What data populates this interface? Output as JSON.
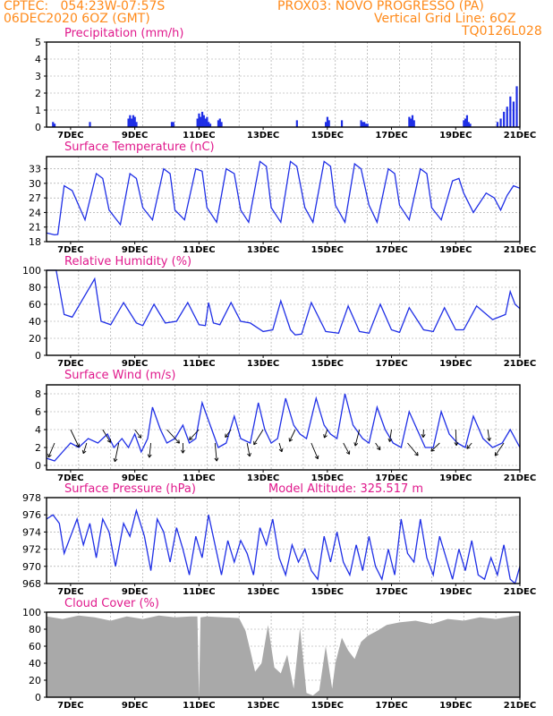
{
  "header": {
    "line1_left": "CPTEC:   054:23W-07:57S",
    "line1_right": "PROX03: NOVO PROGRESSO (PA)",
    "line2_left": "06DEC2020 6OZ (GMT)",
    "line2_right": "Vertical Grid Line: 6OZ",
    "line3_right": "TQ0126L028"
  },
  "colors": {
    "header": "#ff8a1a",
    "panel_title": "#e0198c",
    "series": "#1f2fe6",
    "cloud": "#a9a9a9",
    "grid": "#9a9a9a"
  },
  "x_axis": {
    "start": "06DEC2020 06Z",
    "end": "21DEC2020",
    "days_span": 14.75,
    "tick_labels": [
      "7DEC",
      "9DEC",
      "11DEC",
      "13DEC",
      "15DEC",
      "17DEC",
      "19DEC",
      "21DEC"
    ],
    "tick_days": [
      0.75,
      2.75,
      4.75,
      6.75,
      8.75,
      10.75,
      12.75,
      14.75
    ]
  },
  "chart_data": [
    {
      "type": "bar",
      "id": "precip",
      "title": "Precipitation (mm/h)",
      "ylim": [
        0,
        5
      ],
      "yticks": [
        "0",
        "1",
        "2",
        "3",
        "4",
        "5"
      ],
      "series": [
        {
          "name": "Precipitation",
          "x": [
            0.2,
            0.25,
            1.35,
            2.55,
            2.6,
            2.65,
            2.7,
            2.75,
            2.8,
            3.9,
            3.95,
            4.7,
            4.75,
            4.8,
            4.85,
            4.9,
            4.95,
            5.0,
            5.05,
            5.1,
            5.35,
            5.4,
            5.45,
            7.8,
            8.7,
            8.75,
            8.8,
            9.2,
            9.8,
            9.85,
            9.9,
            9.95,
            10.0,
            11.3,
            11.35,
            11.4,
            11.45,
            13.0,
            13.05,
            13.1,
            13.15,
            13.2,
            14.05,
            14.15,
            14.25,
            14.35,
            14.45,
            14.55,
            14.65
          ],
          "values": [
            0.3,
            0.2,
            0.3,
            0.5,
            0.7,
            0.5,
            0.7,
            0.6,
            0.3,
            0.3,
            0.3,
            0.5,
            0.8,
            0.6,
            0.9,
            0.7,
            0.5,
            0.6,
            0.3,
            0.2,
            0.4,
            0.5,
            0.3,
            0.4,
            0.3,
            0.6,
            0.4,
            0.4,
            0.4,
            0.3,
            0.3,
            0.2,
            0.2,
            0.6,
            0.5,
            0.7,
            0.4,
            0.4,
            0.5,
            0.7,
            0.3,
            0.2,
            0.3,
            0.5,
            0.9,
            1.2,
            1.8,
            1.5,
            2.4
          ]
        }
      ]
    },
    {
      "type": "line",
      "id": "temp",
      "title": "Surface Temperature (nC)",
      "ylim": [
        18,
        35.5
      ],
      "yticks": [
        "18",
        "21",
        "24",
        "27",
        "30",
        "33"
      ],
      "series": [
        {
          "name": "Temperature",
          "x": [
            0,
            0.25,
            0.35,
            0.55,
            0.8,
            1.2,
            1.55,
            1.75,
            1.95,
            2.3,
            2.6,
            2.8,
            3.0,
            3.3,
            3.65,
            3.85,
            4.0,
            4.3,
            4.65,
            4.85,
            5.0,
            5.3,
            5.6,
            5.85,
            6.05,
            6.3,
            6.65,
            6.85,
            7.0,
            7.3,
            7.6,
            7.8,
            8.05,
            8.3,
            8.65,
            8.85,
            9.0,
            9.3,
            9.6,
            9.8,
            10.05,
            10.3,
            10.65,
            10.85,
            11.0,
            11.3,
            11.65,
            11.85,
            12.0,
            12.3,
            12.65,
            12.85,
            13.0,
            13.3,
            13.7,
            13.95,
            14.15,
            14.35,
            14.55,
            14.75
          ],
          "values": [
            19.8,
            19.4,
            19.5,
            29.5,
            28.5,
            22.5,
            32.0,
            31.0,
            24.5,
            21.5,
            32.0,
            31.0,
            25.0,
            22.5,
            33.0,
            32.0,
            24.5,
            22.5,
            33.0,
            32.5,
            25.0,
            22.0,
            33.0,
            32.0,
            24.5,
            22.0,
            34.5,
            33.5,
            25.0,
            22.0,
            34.5,
            33.5,
            25.0,
            22.0,
            34.5,
            33.5,
            25.5,
            22.0,
            34.0,
            33.0,
            25.5,
            22.0,
            33.0,
            32.0,
            25.5,
            22.5,
            33.0,
            32.0,
            25.0,
            22.5,
            30.5,
            31.0,
            28.0,
            24.0,
            28.0,
            27.0,
            24.5,
            27.5,
            29.5,
            29.0
          ]
        }
      ]
    },
    {
      "type": "line",
      "id": "rh",
      "title": "Relative Humidity (%)",
      "ylim": [
        0,
        100
      ],
      "yticks": [
        "0",
        "20",
        "40",
        "60",
        "80",
        "100"
      ],
      "series": [
        {
          "name": "Relative Humidity",
          "x": [
            0,
            0.3,
            0.55,
            0.8,
            1.5,
            1.7,
            2.0,
            2.4,
            2.8,
            3.0,
            3.35,
            3.7,
            4.05,
            4.4,
            4.75,
            4.95,
            5.05,
            5.2,
            5.4,
            5.75,
            6.05,
            6.35,
            6.75,
            7.05,
            7.3,
            7.6,
            7.75,
            7.95,
            8.25,
            8.7,
            9.1,
            9.4,
            9.75,
            10.05,
            10.4,
            10.75,
            11.0,
            11.3,
            11.75,
            12.05,
            12.4,
            12.75,
            13.0,
            13.4,
            13.9,
            14.3,
            14.45,
            14.6,
            14.75
          ],
          "values": [
            100,
            100,
            48,
            45,
            90,
            40,
            36,
            62,
            38,
            35,
            60,
            38,
            40,
            62,
            36,
            35,
            62,
            38,
            36,
            62,
            40,
            38,
            28,
            30,
            64,
            30,
            24,
            25,
            62,
            28,
            26,
            58,
            28,
            26,
            60,
            30,
            27,
            56,
            30,
            28,
            56,
            30,
            30,
            58,
            42,
            48,
            75,
            60,
            55
          ]
        }
      ]
    },
    {
      "type": "line",
      "id": "wind",
      "title": "Surface Wind (m/s)",
      "ylim": [
        -0.5,
        9
      ],
      "yticks": [
        "0",
        "2",
        "4",
        "6",
        "8"
      ],
      "series": [
        {
          "name": "Wind Speed",
          "x": [
            0,
            0.25,
            0.5,
            0.75,
            1.0,
            1.3,
            1.6,
            1.9,
            2.1,
            2.35,
            2.55,
            2.75,
            2.95,
            3.15,
            3.3,
            3.55,
            3.75,
            4.0,
            4.25,
            4.45,
            4.65,
            4.85,
            5.1,
            5.35,
            5.6,
            5.85,
            6.05,
            6.35,
            6.6,
            6.8,
            7.0,
            7.2,
            7.45,
            7.7,
            7.9,
            8.1,
            8.4,
            8.65,
            8.85,
            9.05,
            9.3,
            9.55,
            9.85,
            10.05,
            10.3,
            10.55,
            10.8,
            11.05,
            11.3,
            11.55,
            11.8,
            12.05,
            12.3,
            12.55,
            12.8,
            13.05,
            13.3,
            13.6,
            13.9,
            14.2,
            14.45,
            14.75
          ],
          "values": [
            0.8,
            0.5,
            1.5,
            2.5,
            2.0,
            3.0,
            2.5,
            3.5,
            2.0,
            3.0,
            2.0,
            3.5,
            1.5,
            3.0,
            6.5,
            4.0,
            2.5,
            3.0,
            4.5,
            2.5,
            3.0,
            7.0,
            4.5,
            2.0,
            2.5,
            5.5,
            3.0,
            2.5,
            7.0,
            4.0,
            2.5,
            3.0,
            7.5,
            4.5,
            3.5,
            3.0,
            7.5,
            4.5,
            3.5,
            3.0,
            8.0,
            4.5,
            3.0,
            2.5,
            6.5,
            4.0,
            2.5,
            2.0,
            6.0,
            4.0,
            2.0,
            2.0,
            6.0,
            3.5,
            2.5,
            2.0,
            5.5,
            3.0,
            2.0,
            2.5,
            4.0,
            2.0
          ]
        }
      ],
      "wind_arrow_rows": [
        4,
        2.5
      ]
    },
    {
      "type": "line",
      "id": "pressure",
      "title": "Surface Pressure (hPa)",
      "annotation": "Model Altitude: 325.517 m",
      "ylim": [
        968,
        978
      ],
      "yticks": [
        "968",
        "970",
        "972",
        "974",
        "976",
        "978"
      ],
      "series": [
        {
          "name": "Surface Pressure",
          "x": [
            0,
            0.2,
            0.4,
            0.55,
            0.75,
            0.95,
            1.15,
            1.35,
            1.55,
            1.75,
            1.95,
            2.15,
            2.4,
            2.6,
            2.8,
            3.05,
            3.25,
            3.45,
            3.65,
            3.85,
            4.05,
            4.25,
            4.45,
            4.65,
            4.85,
            5.05,
            5.25,
            5.45,
            5.65,
            5.85,
            6.05,
            6.25,
            6.45,
            6.65,
            6.85,
            7.05,
            7.25,
            7.45,
            7.65,
            7.85,
            8.05,
            8.25,
            8.45,
            8.65,
            8.85,
            9.05,
            9.25,
            9.45,
            9.65,
            9.85,
            10.05,
            10.25,
            10.45,
            10.65,
            10.85,
            11.05,
            11.25,
            11.45,
            11.65,
            11.85,
            12.05,
            12.25,
            12.45,
            12.65,
            12.85,
            13.05,
            13.25,
            13.45,
            13.65,
            13.85,
            14.05,
            14.25,
            14.45,
            14.6,
            14.75
          ],
          "values": [
            975.5,
            976.0,
            975.0,
            971.5,
            973.5,
            975.5,
            972.5,
            975.0,
            971.0,
            975.5,
            974.0,
            970.0,
            975.0,
            973.5,
            976.5,
            973.5,
            969.5,
            975.5,
            974.0,
            970.5,
            974.5,
            972.0,
            969.0,
            973.5,
            971.0,
            976.0,
            972.5,
            969.0,
            973.0,
            970.5,
            973.0,
            971.5,
            969.0,
            974.5,
            972.5,
            975.5,
            971.0,
            969.0,
            972.5,
            970.5,
            972.0,
            969.5,
            968.5,
            973.5,
            970.5,
            974.0,
            970.5,
            969.0,
            972.5,
            969.5,
            973.5,
            970.0,
            968.5,
            972.0,
            969.0,
            975.5,
            971.5,
            970.5,
            975.5,
            971.0,
            969.0,
            973.5,
            971.0,
            968.5,
            972.0,
            969.5,
            973.0,
            969.0,
            968.5,
            971.0,
            969.0,
            972.5,
            968.5,
            968.0,
            970.0
          ]
        }
      ]
    },
    {
      "type": "area",
      "id": "cloud",
      "title": "Cloud Cover (%)",
      "ylim": [
        0,
        100
      ],
      "yticks": [
        "0",
        "20",
        "40",
        "60",
        "80",
        "100"
      ],
      "series": [
        {
          "name": "Cloud Cover",
          "x": [
            0,
            0.5,
            1.0,
            1.5,
            2.0,
            2.5,
            3.0,
            3.5,
            4.0,
            4.5,
            4.7,
            4.75,
            4.8,
            5.0,
            5.5,
            6.0,
            6.2,
            6.35,
            6.5,
            6.7,
            6.9,
            7.1,
            7.3,
            7.5,
            7.7,
            7.9,
            8.1,
            8.3,
            8.5,
            8.7,
            8.9,
            9.0,
            9.2,
            9.4,
            9.6,
            9.8,
            10.0,
            10.3,
            10.6,
            11.0,
            11.5,
            12.0,
            12.5,
            13.0,
            13.5,
            14.0,
            14.5,
            14.75
          ],
          "values": [
            95,
            92,
            96,
            94,
            90,
            95,
            92,
            96,
            94,
            95,
            95,
            0,
            94,
            95,
            94,
            93,
            78,
            55,
            30,
            40,
            85,
            35,
            28,
            50,
            10,
            82,
            5,
            2,
            8,
            60,
            10,
            40,
            70,
            55,
            45,
            65,
            72,
            78,
            85,
            88,
            90,
            86,
            92,
            90,
            94,
            92,
            95,
            96
          ]
        }
      ]
    }
  ]
}
